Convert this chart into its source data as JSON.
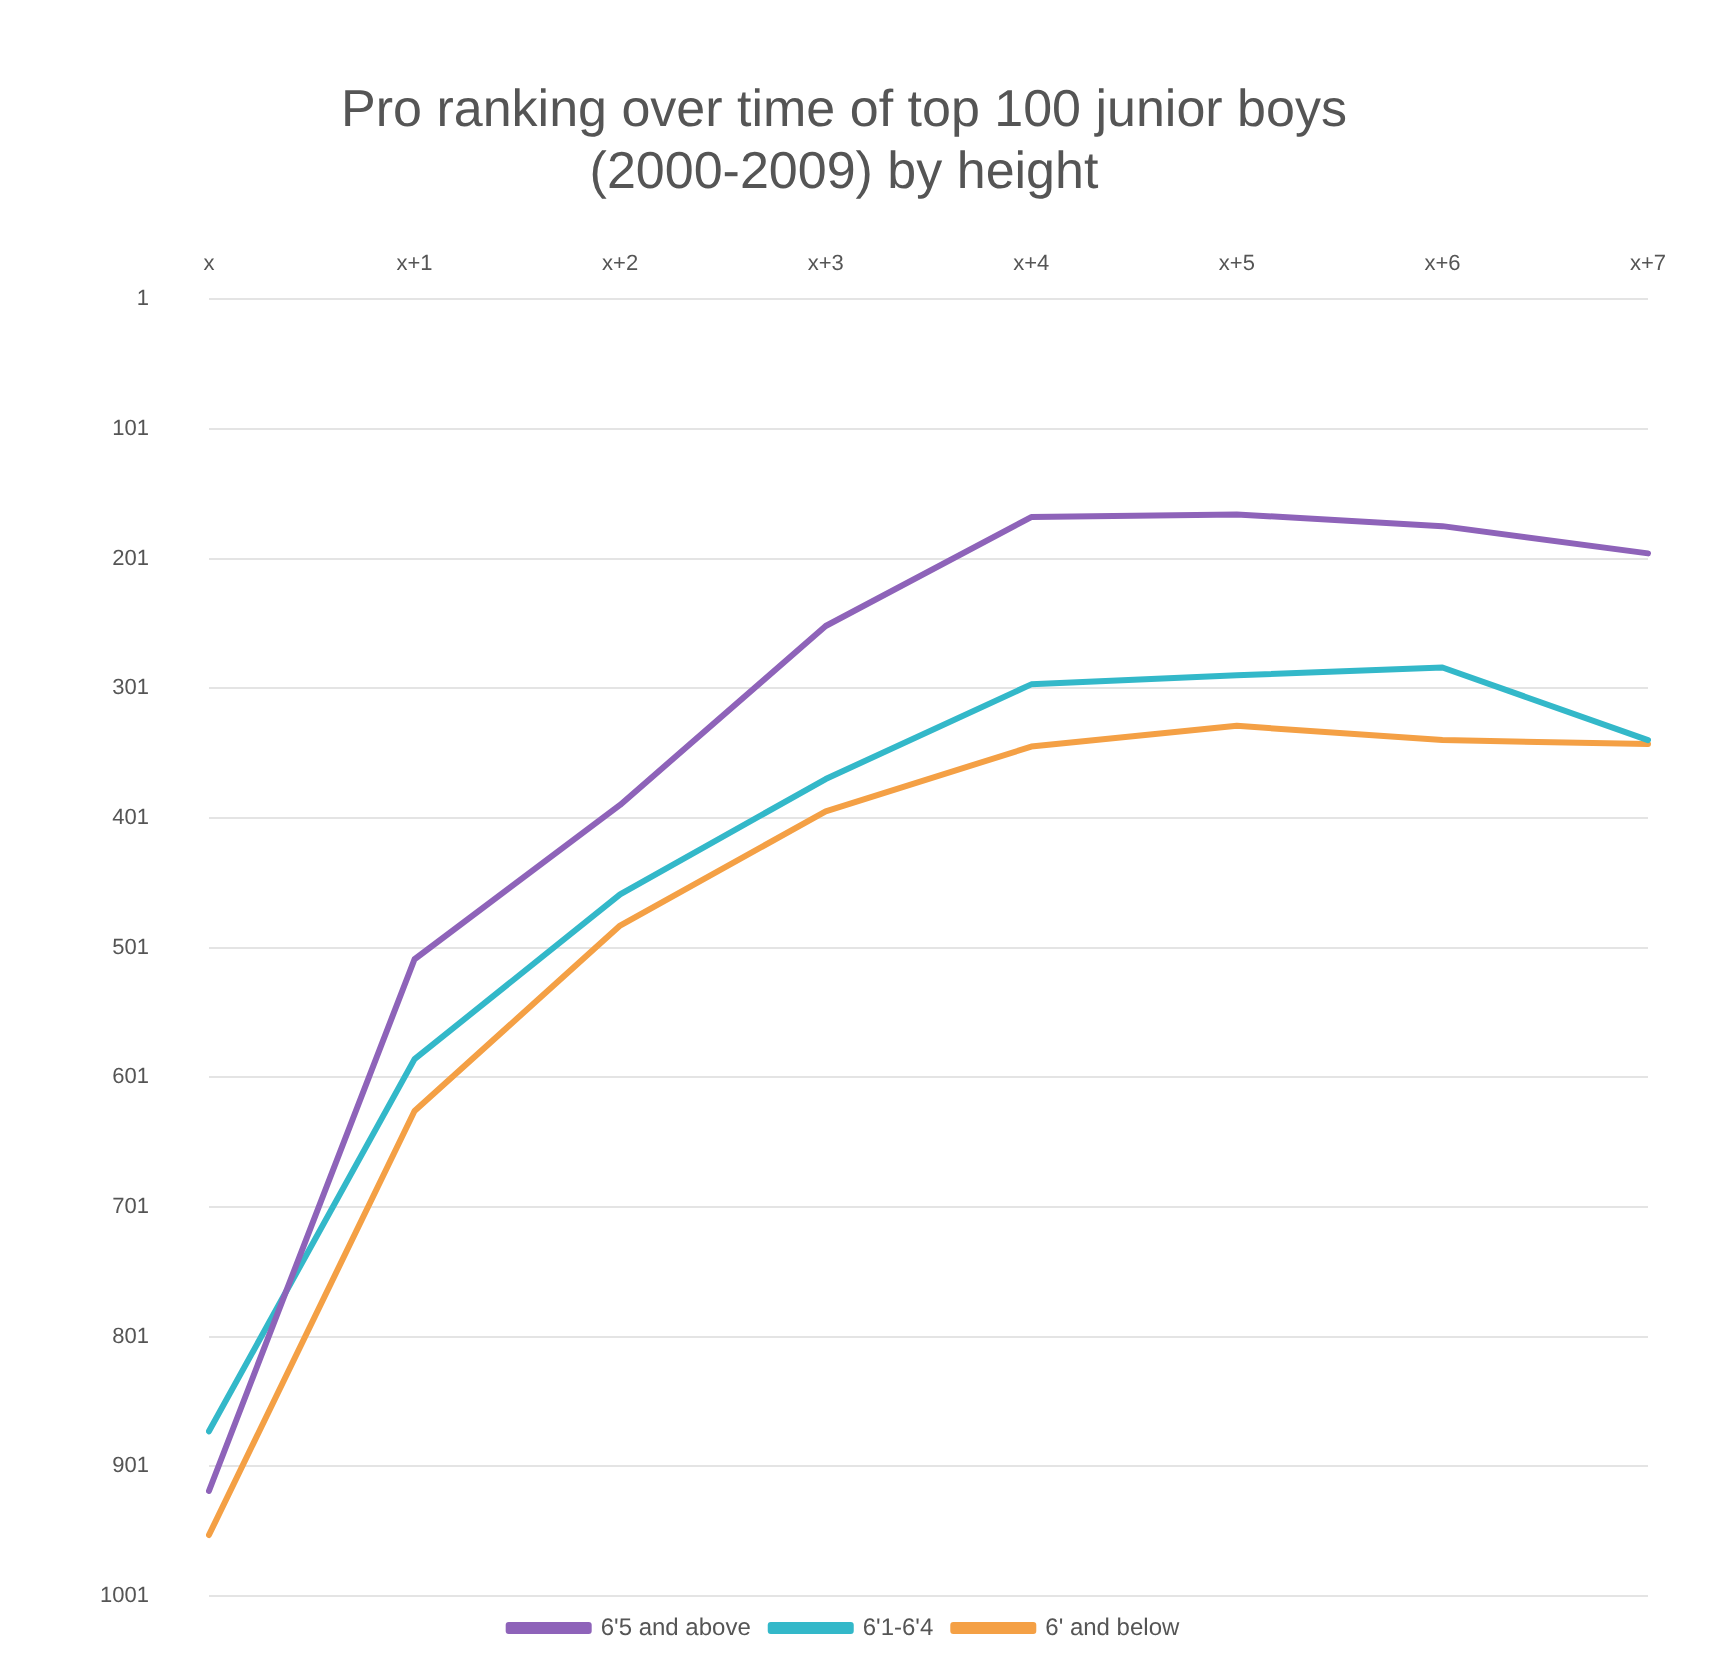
{
  "chart_data": {
    "type": "line",
    "title": "Pro ranking over time of top 100 junior boys (2000-2009) by height",
    "categories": [
      "x",
      "x+1",
      "x+2",
      "x+3",
      "x+4",
      "x+5",
      "x+6",
      "x+7"
    ],
    "series": [
      {
        "name": "6'5 and above",
        "color": "#8e63b9",
        "values": [
          920,
          510,
          391,
          253,
          169,
          167,
          176,
          197
        ]
      },
      {
        "name": "6'1-6'4",
        "color": "#33b8c9",
        "values": [
          874,
          587,
          460,
          371,
          298,
          291,
          285,
          341
        ]
      },
      {
        "name": "6' and below",
        "color": "#f4a045",
        "values": [
          954,
          627,
          484,
          396,
          346,
          330,
          341,
          344
        ]
      }
    ],
    "ylim": [
      1001,
      1
    ],
    "yticks": [
      1,
      101,
      201,
      301,
      401,
      501,
      601,
      701,
      801,
      901,
      1001
    ],
    "grid": "y",
    "legend": "bottom",
    "marker": "none",
    "line_style": "solid"
  }
}
